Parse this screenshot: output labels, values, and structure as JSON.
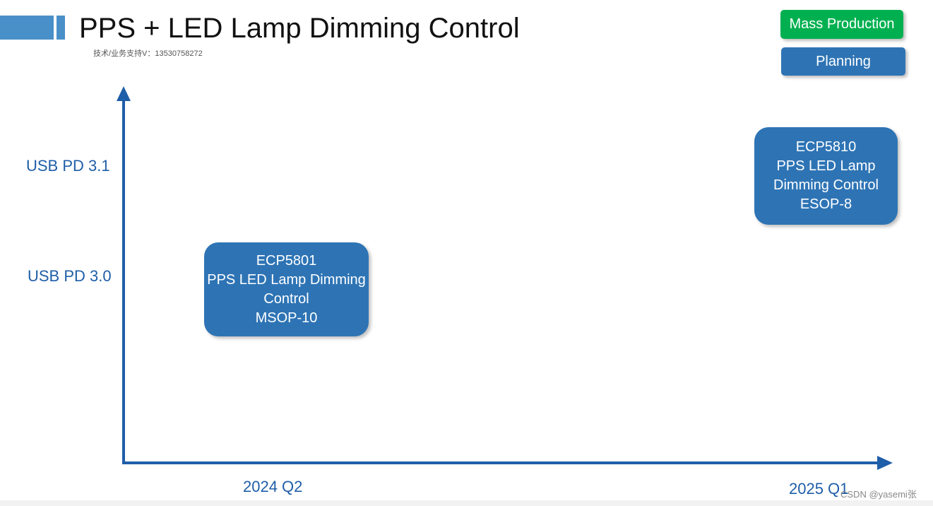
{
  "header": {
    "title": "PPS + LED Lamp Dimming Control",
    "subtitle": "技术/业务支持V：13530758272"
  },
  "legend": {
    "mass_production": "Mass Production",
    "planning": "Planning"
  },
  "axes": {
    "y_levels": [
      "USB PD 3.1",
      "USB PD 3.0"
    ],
    "x_periods": [
      "2024 Q2",
      "2025 Q1"
    ]
  },
  "products": [
    {
      "part": "ECP5801",
      "line1": "PPS LED Lamp Dimming",
      "line2": "Control",
      "package": "MSOP-10",
      "period": "2024 Q2",
      "level": "USB PD 3.0",
      "status": "Planning"
    },
    {
      "part": "ECP5810",
      "line1": "PPS LED Lamp",
      "line2": "Dimming Control",
      "package": "ESOP-8",
      "period": "2025 Q1",
      "level": "USB PD 3.1",
      "status": "Planning"
    }
  ],
  "watermark": "CSDN @yasemi张",
  "colors": {
    "accent_blue": "#4a90c8",
    "axis_blue": "#1f5ea8",
    "label_blue": "#1f5ea8",
    "box_blue": "#2e74b5",
    "mass_green": "#00b050"
  }
}
